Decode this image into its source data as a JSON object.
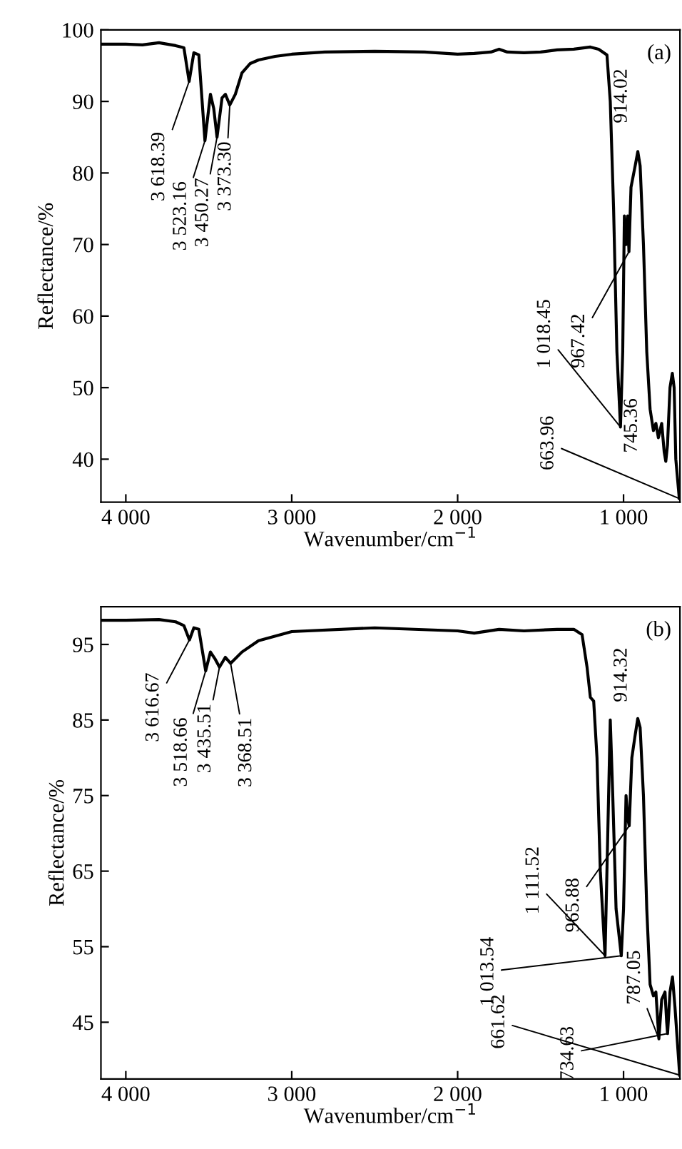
{
  "chart_data": [
    {
      "type": "line",
      "xlabel": "Wavenumber/cm$^{−1}$",
      "ylabel": "Reflectance/%",
      "xlim": [
        4150,
        660
      ],
      "ylim": [
        34,
        100
      ],
      "xticks": [
        {
          "value": 4000,
          "label": "4 000"
        },
        {
          "value": 3000,
          "label": "3 000"
        },
        {
          "value": 2000,
          "label": "2 000"
        },
        {
          "value": 1000,
          "label": "1 000"
        }
      ],
      "yticks": [
        40,
        50,
        60,
        70,
        80,
        90,
        100
      ],
      "series": [
        {
          "color": "#000000",
          "x": [
            4150,
            4000,
            3900,
            3800,
            3700,
            3650,
            3618.39,
            3590,
            3560,
            3523.16,
            3490,
            3470,
            3450.27,
            3420,
            3400,
            3373.3,
            3340,
            3300,
            3250,
            3200,
            3100,
            3000,
            2800,
            2500,
            2200,
            2000,
            1900,
            1800,
            1750,
            1700,
            1600,
            1500,
            1400,
            1300,
            1200,
            1150,
            1100,
            1080,
            1060,
            1040,
            1018.45,
            1005,
            995,
            985,
            975,
            967.42,
            955,
            930,
            914.02,
            900,
            880,
            860,
            840,
            820,
            805,
            790,
            770,
            755,
            745.36,
            735,
            720,
            706,
            695,
            685,
            663.96
          ],
          "values": [
            98,
            98,
            97.9,
            98.2,
            97.8,
            97.5,
            92.8,
            96.8,
            96.5,
            84.5,
            91,
            89,
            85,
            90.5,
            91,
            89.5,
            91,
            94,
            95.3,
            95.8,
            96.3,
            96.6,
            96.9,
            97,
            96.9,
            96.6,
            96.7,
            96.9,
            97.3,
            96.9,
            96.8,
            96.9,
            97.2,
            97.3,
            97.6,
            97.3,
            96.5,
            90,
            75,
            55,
            44.5,
            55,
            74,
            70,
            74,
            69,
            78,
            81,
            83,
            81,
            70,
            55,
            47,
            44,
            45,
            43,
            45,
            41,
            39.7,
            42,
            50,
            52,
            50,
            40,
            34.5
          ]
        }
      ],
      "annotations": [
        "(a)",
        {
          "text": "3 618.39",
          "x": 3618.39,
          "y": 92.8
        },
        {
          "text": "3 523.16",
          "x": 3523.16,
          "y": 84.5
        },
        {
          "text": "3 450.27",
          "x": 3450.27,
          "y": 85
        },
        {
          "text": "3 373.30",
          "x": 3373.3,
          "y": 89.5
        },
        {
          "text": "914.02",
          "x": 914.02,
          "y": 83
        },
        {
          "text": "967.42",
          "x": 967.42,
          "y": 69
        },
        {
          "text": "1 018.45",
          "x": 1018.45,
          "y": 44.5
        },
        {
          "text": "745.36",
          "x": 745.36,
          "y": 39.7
        },
        {
          "text": "663.96",
          "x": 663.96,
          "y": 34.5
        }
      ]
    },
    {
      "type": "line",
      "xlabel": "Wavenumber/cm$^{−1}$",
      "ylabel": "Reflectance/%",
      "xlim": [
        4150,
        660
      ],
      "ylim": [
        37.5,
        100
      ],
      "xticks": [
        {
          "value": 4000,
          "label": "4 000"
        },
        {
          "value": 3000,
          "label": "3 000"
        },
        {
          "value": 2000,
          "label": "2 000"
        },
        {
          "value": 1000,
          "label": "1 000"
        }
      ],
      "yticks": [
        45,
        55,
        65,
        75,
        85,
        95
      ],
      "series": [
        {
          "color": "#000000",
          "x": [
            4150,
            4000,
            3800,
            3700,
            3650,
            3616.67,
            3590,
            3560,
            3518.66,
            3490,
            3460,
            3435.51,
            3400,
            3368.51,
            3300,
            3200,
            3000,
            2500,
            2000,
            1900,
            1750,
            1600,
            1400,
            1300,
            1250,
            1220,
            1200,
            1180,
            1160,
            1140,
            1111.52,
            1095,
            1080,
            1065,
            1045,
            1013.54,
            1000,
            985,
            975,
            965.88,
            950,
            930,
            914.32,
            900,
            880,
            860,
            840,
            820,
            805,
            787.05,
            770,
            750,
            740,
            734.63,
            720,
            705,
            690,
            661.62
          ],
          "values": [
            98.2,
            98.2,
            98.3,
            98,
            97.5,
            95.6,
            97.2,
            97,
            91.5,
            94,
            93,
            92,
            93.3,
            92.5,
            94,
            95.5,
            96.7,
            97.2,
            96.8,
            96.5,
            97,
            96.8,
            97,
            97,
            96.3,
            92,
            88,
            87.5,
            80,
            65,
            53.8,
            70,
            85,
            75,
            60,
            53.8,
            60,
            75,
            72,
            71,
            80,
            83,
            85.2,
            84,
            75,
            60,
            50,
            48.5,
            49,
            42.8,
            48,
            49,
            45,
            43.5,
            49,
            51,
            47,
            38
          ]
        }
      ],
      "annotations": [
        "(b)",
        {
          "text": "3 616.67",
          "x": 3616.67,
          "y": 95.6
        },
        {
          "text": "3 518.66",
          "x": 3518.66,
          "y": 91.5
        },
        {
          "text": "3 435.51",
          "x": 3435.51,
          "y": 92
        },
        {
          "text": "3 368.51",
          "x": 3368.51,
          "y": 92.5
        },
        {
          "text": "914.32",
          "x": 914.32,
          "y": 85.2
        },
        {
          "text": "965.88",
          "x": 965.88,
          "y": 71
        },
        {
          "text": "1 111.52",
          "x": 1111.52,
          "y": 53.8
        },
        {
          "text": "1 013.54",
          "x": 1013.54,
          "y": 53.8
        },
        {
          "text": "787.05",
          "x": 787.05,
          "y": 42.8
        },
        {
          "text": "734.63",
          "x": 734.63,
          "y": 43.5
        },
        {
          "text": "661.62",
          "x": 661.62,
          "y": 38
        }
      ]
    }
  ]
}
